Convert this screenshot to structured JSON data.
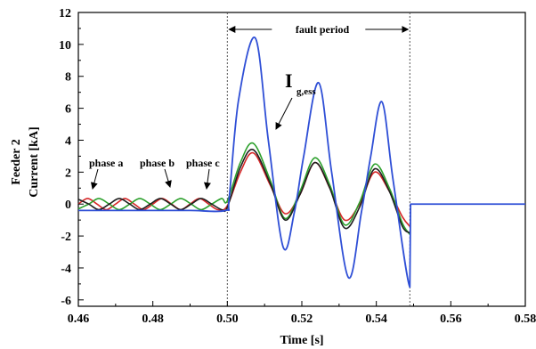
{
  "chart_data": {
    "type": "line",
    "xlabel": "Time [s]",
    "ylabel_line1": "Feeder 2",
    "ylabel_line2": "Current [kA]",
    "xlim": [
      0.46,
      0.58
    ],
    "ylim": [
      -6.4,
      12
    ],
    "x_ticks": [
      0.46,
      0.48,
      0.5,
      0.52,
      0.54,
      0.56,
      0.58
    ],
    "x_tick_labels": [
      "0.46",
      "0.48",
      "0.50",
      "0.52",
      "0.54",
      "0.56",
      "0.58"
    ],
    "y_ticks": [
      -6,
      -4,
      -2,
      0,
      2,
      4,
      6,
      8,
      10,
      12
    ],
    "y_tick_labels": [
      "-6",
      "-4",
      "-2",
      "0",
      "2",
      "4",
      "6",
      "8",
      "10",
      "12"
    ],
    "grid": false,
    "legend": "none",
    "fault_start": 0.5,
    "fault_end": 0.549,
    "fault_period_label": "fault period",
    "annotations": {
      "phase_a": "phase a",
      "phase_b": "phase b",
      "phase_c": "phase c",
      "ess_main": "I",
      "ess_sub": "g,ess"
    },
    "colors": {
      "phase_a": "#d62728",
      "phase_b": "#2ca02c",
      "phase_c": "#1f1f1f",
      "ess": "#2f4fd6"
    },
    "series": [
      {
        "key": "phase_a",
        "color": "#d62728",
        "x": [
          0.46,
          0.4625,
          0.465,
          0.4675,
          0.47,
          0.4725,
          0.475,
          0.4775,
          0.48,
          0.4825,
          0.485,
          0.4875,
          0.49,
          0.4925,
          0.495,
          0.4975,
          0.5,
          0.5035,
          0.507,
          0.5115,
          0.5155,
          0.5195,
          0.5235,
          0.5275,
          0.5315,
          0.5355,
          0.5395,
          0.5435,
          0.547,
          0.549
        ],
        "y": [
          0.0,
          0.35,
          0.0,
          -0.35,
          0.0,
          0.35,
          0.0,
          -0.35,
          0.0,
          0.35,
          0.0,
          -0.35,
          0.0,
          0.35,
          0.0,
          -0.35,
          -0.1,
          2.0,
          3.2,
          1.2,
          -0.6,
          0.6,
          2.6,
          1.0,
          -1.0,
          0.0,
          2.0,
          0.8,
          -0.8,
          -1.4
        ]
      },
      {
        "key": "phase_b",
        "color": "#2ca02c",
        "x": [
          0.46,
          0.4628,
          0.4655,
          0.4683,
          0.471,
          0.4738,
          0.4765,
          0.4793,
          0.482,
          0.4848,
          0.4875,
          0.4903,
          0.493,
          0.4958,
          0.4985,
          0.5,
          0.5035,
          0.507,
          0.5115,
          0.5155,
          0.5195,
          0.5235,
          0.5275,
          0.5315,
          0.5355,
          0.5395,
          0.5435,
          0.547,
          0.549
        ],
        "y": [
          -0.3,
          0.0,
          0.35,
          0.0,
          -0.35,
          0.0,
          0.35,
          0.0,
          -0.35,
          0.0,
          0.35,
          0.0,
          -0.35,
          0.0,
          0.35,
          0.2,
          2.6,
          3.8,
          1.5,
          -0.9,
          0.8,
          2.9,
          1.2,
          -1.3,
          0.1,
          2.5,
          1.0,
          -1.2,
          -1.9
        ]
      },
      {
        "key": "phase_c",
        "color": "#1f1f1f",
        "x": [
          0.46,
          0.4628,
          0.4655,
          0.4683,
          0.471,
          0.4738,
          0.4765,
          0.4793,
          0.482,
          0.4848,
          0.4875,
          0.4903,
          0.493,
          0.4958,
          0.4985,
          0.5,
          0.5035,
          0.507,
          0.5115,
          0.5155,
          0.5195,
          0.5235,
          0.5275,
          0.5315,
          0.5355,
          0.5395,
          0.5435,
          0.547,
          0.549
        ],
        "y": [
          0.3,
          0.0,
          -0.35,
          0.0,
          0.35,
          0.0,
          -0.35,
          0.0,
          0.35,
          0.0,
          -0.35,
          0.0,
          0.35,
          0.0,
          -0.35,
          -0.2,
          2.3,
          3.4,
          1.3,
          -1.0,
          0.6,
          2.6,
          1.0,
          -1.5,
          -0.2,
          2.2,
          0.8,
          -1.4,
          -1.8
        ]
      },
      {
        "key": "ess",
        "color": "#2f4fd6",
        "x": [
          0.46,
          0.47,
          0.48,
          0.49,
          0.4995,
          0.5005,
          0.503,
          0.5075,
          0.511,
          0.515,
          0.518,
          0.5205,
          0.5245,
          0.528,
          0.5325,
          0.536,
          0.5385,
          0.5415,
          0.5445,
          0.549,
          0.5492,
          0.58
        ],
        "y": [
          -0.4,
          -0.4,
          -0.4,
          -0.4,
          -0.4,
          0.4,
          6.5,
          10.4,
          4.0,
          -2.7,
          -0.5,
          3.0,
          7.6,
          2.0,
          -4.6,
          -0.5,
          3.0,
          6.4,
          1.5,
          -5.2,
          0.0,
          0.0
        ]
      }
    ]
  }
}
